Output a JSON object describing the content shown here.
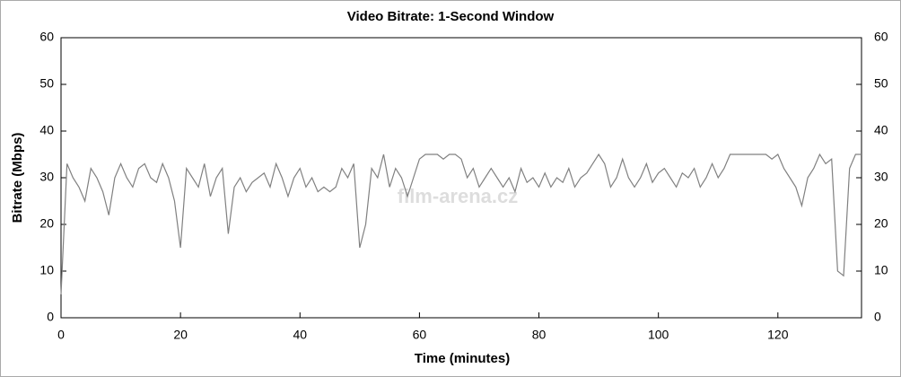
{
  "chart_data": {
    "type": "line",
    "title": "Video Bitrate: 1-Second Window",
    "xlabel": "Time (minutes)",
    "ylabel": "Bitrate (Mbps)",
    "watermark": "film-arena.cz",
    "x": [
      0,
      1,
      2,
      3,
      4,
      5,
      6,
      7,
      8,
      9,
      10,
      11,
      12,
      13,
      14,
      15,
      16,
      17,
      18,
      19,
      20,
      21,
      22,
      23,
      24,
      25,
      26,
      27,
      28,
      29,
      30,
      31,
      32,
      33,
      34,
      35,
      36,
      37,
      38,
      39,
      40,
      41,
      42,
      43,
      44,
      45,
      46,
      47,
      48,
      49,
      50,
      51,
      52,
      53,
      54,
      55,
      56,
      57,
      58,
      59,
      60,
      61,
      62,
      63,
      64,
      65,
      66,
      67,
      68,
      69,
      70,
      71,
      72,
      73,
      74,
      75,
      76,
      77,
      78,
      79,
      80,
      81,
      82,
      83,
      84,
      85,
      86,
      87,
      88,
      89,
      90,
      91,
      92,
      93,
      94,
      95,
      96,
      97,
      98,
      99,
      100,
      101,
      102,
      103,
      104,
      105,
      106,
      107,
      108,
      109,
      110,
      111,
      112,
      113,
      114,
      115,
      116,
      117,
      118,
      119,
      120,
      121,
      122,
      123,
      124,
      125,
      126,
      127,
      128,
      129,
      130,
      131,
      132,
      133,
      134
    ],
    "series": [
      {
        "name": "Bitrate",
        "color": "#808080",
        "values": [
          5,
          33,
          30,
          28,
          25,
          32,
          30,
          27,
          22,
          30,
          33,
          30,
          28,
          32,
          33,
          30,
          29,
          33,
          30,
          25,
          15,
          32,
          30,
          28,
          33,
          26,
          30,
          32,
          18,
          28,
          30,
          27,
          29,
          30,
          31,
          28,
          33,
          30,
          26,
          30,
          32,
          28,
          30,
          27,
          28,
          27,
          28,
          32,
          30,
          33,
          15,
          20,
          32,
          30,
          35,
          28,
          32,
          30,
          26,
          30,
          34,
          35,
          35,
          35,
          34,
          35,
          35,
          34,
          30,
          32,
          28,
          30,
          32,
          30,
          28,
          30,
          27,
          32,
          29,
          30,
          28,
          31,
          28,
          30,
          29,
          32,
          28,
          30,
          31,
          33,
          35,
          33,
          28,
          30,
          34,
          30,
          28,
          30,
          33,
          29,
          31,
          32,
          30,
          28,
          31,
          30,
          32,
          28,
          30,
          33,
          30,
          32,
          35,
          35,
          35,
          35,
          35,
          35,
          35,
          34,
          35,
          32,
          30,
          28,
          24,
          30,
          32,
          35,
          33,
          34,
          10,
          9,
          32,
          35,
          35
        ]
      }
    ],
    "xlim": [
      0,
      134
    ],
    "xticks": [
      0,
      20,
      40,
      60,
      80,
      100,
      120
    ],
    "ylim": [
      0,
      60
    ],
    "yticks": [
      0,
      10,
      20,
      30,
      40,
      50,
      60
    ],
    "y2lim": [
      0,
      60
    ],
    "y2ticks": [
      0,
      10,
      20,
      30,
      40,
      50,
      60
    ],
    "grid": false
  }
}
